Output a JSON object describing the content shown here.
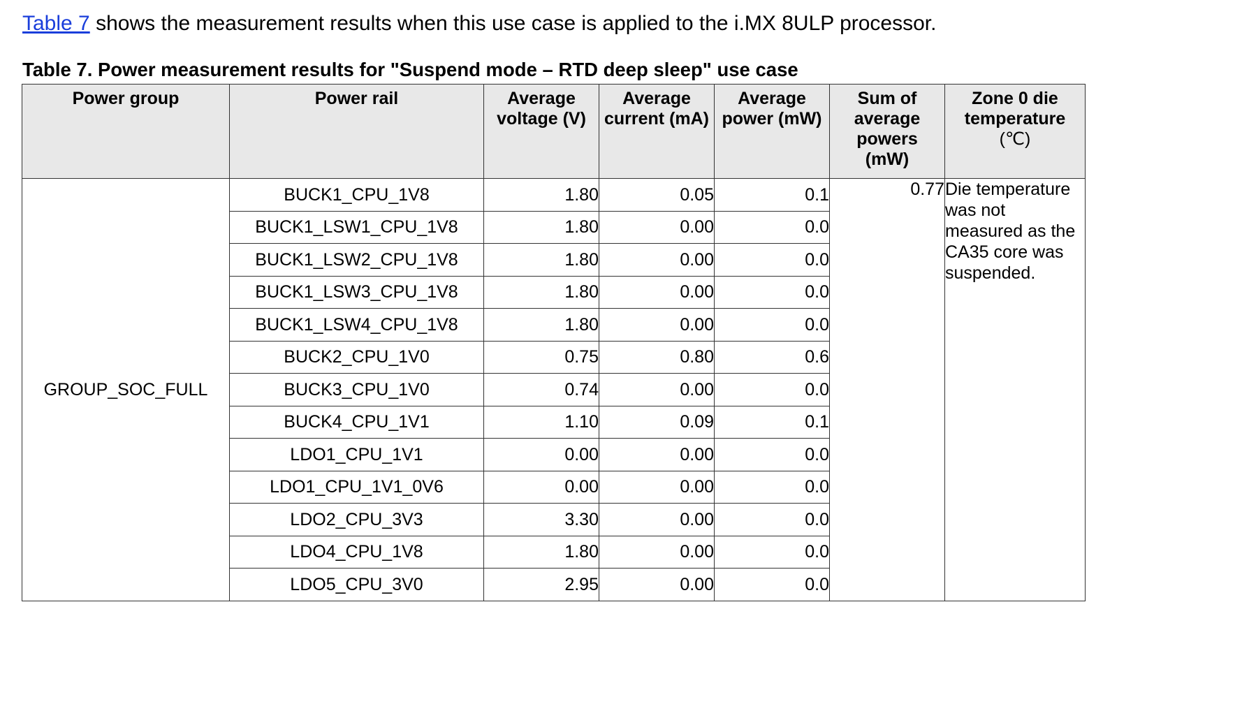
{
  "intro": {
    "link_text": "Table 7",
    "rest_text": " shows the measurement results when this use case is applied to the i.MX 8ULP processor."
  },
  "caption": "Table 7.  Power measurement results for \"Suspend mode – RTD deep sleep\" use case",
  "table": {
    "headers": {
      "power_group": "Power group",
      "power_rail": "Power rail",
      "avg_voltage_1": "Average",
      "avg_voltage_2": "voltage (V)",
      "avg_current_1": "Average",
      "avg_current_2": "current (mA)",
      "avg_power_1": "Average",
      "avg_power_2": "power (mW)",
      "sum_1": "Sum of",
      "sum_2": "average",
      "sum_3": "powers",
      "sum_4": "(mW)",
      "zone_1": "Zone 0 die",
      "zone_2": "temperature",
      "zone_3": "(℃)"
    },
    "group": "GROUP_SOC_FULL",
    "sum_of_powers": "0.77",
    "temperature_note": "Die temperature was not measured as the CA35 core was suspended.",
    "rows": [
      {
        "rail": "BUCK1_CPU_1V8",
        "voltage": "1.80",
        "current": "0.05",
        "power": "0.1"
      },
      {
        "rail": "BUCK1_LSW1_CPU_1V8",
        "voltage": "1.80",
        "current": "0.00",
        "power": "0.0"
      },
      {
        "rail": "BUCK1_LSW2_CPU_1V8",
        "voltage": "1.80",
        "current": "0.00",
        "power": "0.0"
      },
      {
        "rail": "BUCK1_LSW3_CPU_1V8",
        "voltage": "1.80",
        "current": "0.00",
        "power": "0.0"
      },
      {
        "rail": "BUCK1_LSW4_CPU_1V8",
        "voltage": "1.80",
        "current": "0.00",
        "power": "0.0"
      },
      {
        "rail": "BUCK2_CPU_1V0",
        "voltage": "0.75",
        "current": "0.80",
        "power": "0.6"
      },
      {
        "rail": "BUCK3_CPU_1V0",
        "voltage": "0.74",
        "current": "0.00",
        "power": "0.0"
      },
      {
        "rail": "BUCK4_CPU_1V1",
        "voltage": "1.10",
        "current": "0.09",
        "power": "0.1"
      },
      {
        "rail": "LDO1_CPU_1V1",
        "voltage": "0.00",
        "current": "0.00",
        "power": "0.0"
      },
      {
        "rail": "LDO1_CPU_1V1_0V6",
        "voltage": "0.00",
        "current": "0.00",
        "power": "0.0"
      },
      {
        "rail": "LDO2_CPU_3V3",
        "voltage": "3.30",
        "current": "0.00",
        "power": "0.0"
      },
      {
        "rail": "LDO4_CPU_1V8",
        "voltage": "1.80",
        "current": "0.00",
        "power": "0.0"
      },
      {
        "rail": "LDO5_CPU_3V0",
        "voltage": "2.95",
        "current": "0.00",
        "power": "0.0"
      }
    ]
  },
  "colors": {
    "link": "#1a3edb",
    "header_bg": "#e8e8e8",
    "border": "#333333"
  }
}
